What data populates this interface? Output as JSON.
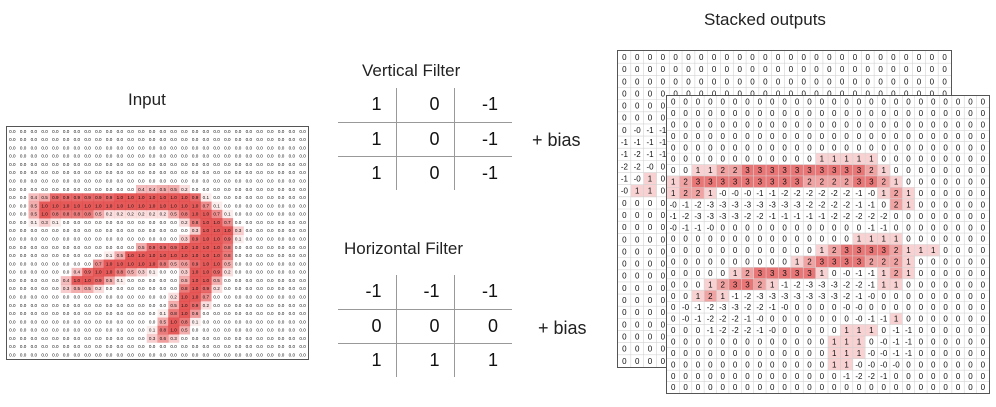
{
  "input": {
    "title": "Input",
    "rows": [
      "0.0 0.0 0.0 0.0 0.0 0.0 0.0 0.0 0.0 0.0 0.0 0.0 0.0 0.0 0.0 0.0 0.0 0.0 0.0 0.0 0.0 0.0 0.0 0.0 0.0 0.0 0.0 0.0",
      "0.0 0.0 0.0 0.0 0.0 0.0 0.0 0.0 0.0 0.0 0.0 0.0 0.0 0.0 0.0 0.0 0.0 0.0 0.0 0.0 0.0 0.0 0.0 0.0 0.0 0.0 0.0 0.0",
      "0.0 0.0 0.0 0.0 0.0 0.0 0.0 0.0 0.0 0.0 0.0 0.0 0.0 0.0 0.0 0.0 0.0 0.0 0.0 0.0 0.0 0.0 0.0 0.0 0.0 0.0 0.0 0.0",
      "0.0 0.0 0.0 0.0 0.0 0.0 0.0 0.0 0.0 0.0 0.0 0.0 0.0 0.0 0.0 0.0 0.0 0.0 0.0 0.0 0.0 0.0 0.0 0.0 0.0 0.0 0.0 0.0",
      "0.0 0.0 0.0 0.0 0.0 0.0 0.0 0.0 0.0 0.0 0.0 0.0 0.0 0.0 0.0 0.0 0.0 0.0 0.0 0.0 0.0 0.0 0.0 0.0 0.0 0.0 0.0 0.0",
      "0.0 0.0 0.0 0.0 0.0 0.0 0.0 0.0 0.0 0.0 0.0 0.0 0.0 0.0 0.0 0.0 0.0 0.0 0.0 0.0 0.0 0.0 0.0 0.0 0.0 0.0 0.0 0.0",
      "0.0 0.0 0.0 0.0 0.0 0.0 0.0 0.0 0.0 0.0 0.0 0.0 0.0 0.0 0.0 0.0 0.0 0.0 0.0 0.0 0.0 0.0 0.0 0.0 0.0 0.0 0.0 0.0",
      "0.0 0.0 0.0 0.0 0.0 0.0 0.0 0.0 0.0 0.0 0.0 0.0 0.4 0.4 0.5 0.5 0.2 0.0 0.0 0.0 0.0 0.0 0.0 0.0 0.0 0.0 0.0 0.0",
      "0.0 0.0 0.4 0.5 0.9 0.9 0.9 0.9 0.9 0.9 1.0 1.0 1.0 1.0 1.0 1.0 1.0 0.9 0.1 0.0 0.0 0.0 0.0 0.0 0.0 0.0 0.0 0.0",
      "0.0 0.0 0.5 1.0 1.0 1.0 1.0 1.0 1.0 1.0 1.0 1.0 1.0 1.0 1.0 1.0 1.0 1.0 0.7 0.1 0.0 0.0 0.0 0.0 0.0 0.0 0.0 0.0",
      "0.0 0.0 0.5 1.0 0.8 0.8 0.8 0.8 0.5 0.2 0.2 0.2 0.2 0.2 0.2 0.5 0.8 1.0 1.0 0.7 0.1 0.0 0.0 0.0 0.0 0.0 0.0 0.0",
      "0.0 0.0 0.1 0.3 0.1 0.0 0.0 0.0 0.0 0.0 0.0 0.0 0.0 0.0 0.0 0.0 0.2 0.8 1.0 1.0 0.7 0.0 0.0 0.0 0.0 0.0 0.0 0.0",
      "0.0 0.0 0.0 0.0 0.0 0.0 0.0 0.0 0.0 0.0 0.0 0.0 0.0 0.0 0.0 0.0 0.0 0.3 1.0 1.0 1.0 0.3 0.0 0.0 0.0 0.0 0.0 0.0",
      "0.0 0.0 0.0 0.0 0.0 0.0 0.0 0.0 0.0 0.0 0.0 0.0 0.0 0.0 0.0 0.0 0.3 0.9 1.0 1.0 0.9 0.1 0.0 0.0 0.0 0.0 0.0 0.0",
      "0.0 0.0 0.0 0.0 0.0 0.0 0.0 0.0 0.0 0.0 0.0 0.0 0.5 0.9 0.9 0.9 1.0 1.0 1.0 1.0 0.8 0.0 0.0 0.0 0.0 0.0 0.0 0.0",
      "0.0 0.0 0.0 0.0 0.0 0.0 0.0 0.0 0.0 0.1 0.5 1.0 1.0 1.0 1.0 1.0 1.0 1.0 1.0 1.0 0.8 0.0 0.0 0.0 0.0 0.0 0.0 0.0",
      "0.0 0.0 0.0 0.0 0.0 0.0 0.0 0.0 0.7 1.0 1.0 1.0 1.0 1.0 0.8 0.5 0.6 0.9 1.0 1.0 0.5 0.0 0.0 0.0 0.0 0.0 0.0 0.0",
      "0.0 0.0 0.0 0.0 0.0 0.0 0.4 0.9 1.0 1.0 0.8 0.5 0.3 0.1 0.0 0.0 0.3 1.0 1.0 0.9 0.2 0.0 0.0 0.0 0.0 0.0 0.0 0.0",
      "0.0 0.0 0.0 0.0 0.0 0.4 1.0 1.0 0.9 0.5 0.1 0.0 0.0 0.0 0.0 0.0 0.5 1.0 1.0 0.5 0.0 0.0 0.0 0.0 0.0 0.0 0.0 0.0",
      "0.0 0.0 0.0 0.0 0.0 0.3 0.5 0.5 0.2 0.0 0.0 0.0 0.0 0.0 0.0 0.0 0.8 1.0 0.9 0.2 0.0 0.0 0.0 0.0 0.0 0.0 0.0 0.0",
      "0.0 0.0 0.0 0.0 0.0 0.0 0.0 0.0 0.0 0.0 0.0 0.0 0.0 0.0 0.0 0.2 1.0 1.0 0.7 0.0 0.0 0.0 0.0 0.0 0.0 0.0 0.0 0.0",
      "0.0 0.0 0.0 0.0 0.0 0.0 0.0 0.0 0.0 0.0 0.0 0.0 0.0 0.0 0.0 0.5 1.0 0.9 0.2 0.0 0.0 0.0 0.0 0.0 0.0 0.0 0.0 0.0",
      "0.0 0.0 0.0 0.0 0.0 0.0 0.0 0.0 0.0 0.0 0.0 0.0 0.0 0.0 0.1 0.8 1.0 0.6 0.0 0.0 0.0 0.0 0.0 0.0 0.0 0.0 0.0 0.0",
      "0.0 0.0 0.0 0.0 0.0 0.0 0.0 0.0 0.0 0.0 0.0 0.0 0.0 0.0 0.5 1.0 0.8 0.1 0.0 0.0 0.0 0.0 0.0 0.0 0.0 0.0 0.0 0.0",
      "0.0 0.0 0.0 0.0 0.0 0.0 0.0 0.0 0.0 0.0 0.0 0.0 0.0 0.1 0.8 1.0 0.5 0.0 0.0 0.0 0.0 0.0 0.0 0.0 0.0 0.0 0.0 0.0",
      "0.0 0.0 0.0 0.0 0.0 0.0 0.0 0.0 0.0 0.0 0.0 0.0 0.0 0.3 0.6 0.3 0.0 0.0 0.0 0.0 0.0 0.0 0.0 0.0 0.0 0.0 0.0 0.0",
      "0.0 0.0 0.0 0.0 0.0 0.0 0.0 0.0 0.0 0.0 0.0 0.0 0.0 0.0 0.0 0.0 0.0 0.0 0.0 0.0 0.0 0.0 0.0 0.0 0.0 0.0 0.0 0.0",
      "0.0 0.0 0.0 0.0 0.0 0.0 0.0 0.0 0.0 0.0 0.0 0.0 0.0 0.0 0.0 0.0 0.0 0.0 0.0 0.0 0.0 0.0 0.0 0.0 0.0 0.0 0.0 0.0"
    ]
  },
  "vertical_filter": {
    "title": "Vertical Filter",
    "rows": [
      [
        "1",
        "0",
        "-1"
      ],
      [
        "1",
        "0",
        "-1"
      ],
      [
        "1",
        "0",
        "-1"
      ]
    ],
    "bias": "+ bias"
  },
  "horizontal_filter": {
    "title": "Horizontal Filter",
    "rows": [
      [
        "-1",
        "-1",
        "-1"
      ],
      [
        "0",
        "0",
        "0"
      ],
      [
        "1",
        "1",
        "1"
      ]
    ],
    "bias": "+ bias"
  },
  "outputs": {
    "title": "Stacked outputs",
    "back_rows": [
      "0 0 0 0 0 0 0 0 0 0 0 0 0 0 0 0 0 0 0 0 0 0 0 0 0 0",
      "0 0 0 0 0 0 0 0 0 0 0 0 0 0 0 0 0 0 0 0 0 0 0 0 0 0",
      "0 0 0 0 0 0 0 0 0 0 0 0 0 0 0 0 0 0 0 0 0 0 0 0 0 0",
      "0 0 0 0 0 0 0 0 0 0 0 0 0 0 0 0 0 0 0 0 0 0 0 0 0 0",
      "0 0 0 0 0 0 0 0 0 0 0 0 0 0 0 0 0 0 0 0 0 0 0 0 0 0",
      "0 0 0 0 0 0 0 0 0 0 0 0 0 0 0 0 0 0 0 0 0 0 0 0 0 0",
      "0 -0 -1 -1 0 0 0 0 0 0 0 0 0 0 0 0 0 0 0 0 0 0 0 0 0 0",
      "-1 -1 -1 -1 0 0 0 0 0 0 0 0 0 0 0 0 0 0 0 0 0 0 0 0 0 0",
      "-1 -2 -1 -1 0 0 0 0 0 0 0 0 0 0 0 0 0 0 0 0 0 0 0 0 0 0",
      "-2 -2 -0 0 0 0 0 0 0 0 0 0 0 0 0 0 0 0 0 0 0 0 0 0 0 0",
      "-1 -0 1 0 0 0 0 0 0 0 0 0 0 0 0 0 0 0 0 0 0 0 0 0 0 0",
      "-0 1 1 0 0 0 0 0 0 0 0 0 0 0 0 0 0 0 0 0 0 0 0 0 0 0",
      "0 0 0 0 0 0 0 0 0 0 0 0 0 0 0 0 0 0 0 0 0 0 0 0 0 0",
      "0 0 0 0 0 0 0 0 0 0 0 0 0 0 0 0 0 0 0 0 0 0 0 0 0 0",
      "0 0 0 0 0 0 0 0 0 0 0 0 0 0 0 0 0 0 0 0 0 0 0 0 0 0",
      "0 0 0 0 0 0 0 0 0 0 0 0 0 0 0 0 0 0 0 0 0 0 0 0 0 0",
      "0 0 0 0 0 0 0 0 0 0 0 0 0 0 0 0 0 0 0 0 0 0 0 0 0 0",
      "0 0 0 0 0 0 0 0 0 0 0 0 0 0 0 0 0 0 0 0 0 0 0 0 0 0",
      "0 0 0 0 0 0 0 0 0 0 0 0 0 0 0 0 0 0 0 0 0 0 0 0 0 0",
      "0 0 0 0 0 0 0 0 0 0 0 0 0 0 0 0 0 0 0 0 0 0 0 0 0 0",
      "0 0 0 0 0 0 0 0 0 0 0 0 0 0 0 0 0 0 0 0 0 0 0 0 0 0",
      "0 0 0 0 0 0 0 0 0 0 0 0 0 0 0 0 0 0 0 0 0 0 0 0 0 0",
      "0 0 0 0 0 0 0 0 0 0 0 0 0 0 0 0 0 0 0 0 0 0 0 0 0 0",
      "0 0 0 0 0 0 0 0 0 0 0 0 0 0 0 0 0 0 0 0 0 0 0 0 0 0",
      "0 0 0 0 0 0 0 0 0 0 0 0 0 0 0 0 0 0 0 0 0 0 0 0 0 0",
      "0 0 0 0 0 0 0 0 0 0 0 0 0 0 0 0 0 0 0 0 0 0 0 0 0 0"
    ],
    "front_rows": [
      "0 0 0 0 0 0 0 0 0 0 0 0 0 0 0 0 0 0 0 0 0 0 0 0 0 0",
      "0 0 0 0 0 0 0 0 0 0 0 0 0 0 0 0 0 0 0 0 0 0 0 0 0 0",
      "0 0 0 0 0 0 0 0 0 0 0 0 0 0 0 0 0 0 0 0 0 0 0 0 0 0",
      "0 0 0 0 0 0 0 0 0 0 0 0 0 0 0 0 0 0 0 0 0 0 0 0 0 0",
      "0 0 0 0 0 0 0 0 0 0 0 0 0 0 0 0 0 0 0 0 0 0 0 0 0 0",
      "0 0 0 0 0 0 0 0 0 0 0 0 1 1 1 1 1 0 0 0 0 0 0 0 0 0",
      "0 0 1 1 2 2 3 3 3 3 3 3 3 3 3 3 2 1 0 0 0 0 0 0 0 0",
      "1 2 3 3 3 3 3 3 3 3 3 2 2 2 2 3 3 2 1 0 0 0 0 0 0 0",
      "1 2 2 1 -0 -0 -0 -1 -1 -2 -2 -2 -2 -2 -2 -1 -0 1 2 1 0 0 0 0 0 0",
      "-0 -1 -2 -3 -3 -3 -3 -3 -3 -3 -3 -2 -2 -2 -2 -1 -1 0 2 1 0 0 0 0 0 0",
      "-1 -2 -3 -3 -3 -3 -2 -2 -1 -1 -1 -1 -1 -2 -2 -2 -2 -2 0 0 0 0 0 0 0 0",
      "-0 -1 -1 -0 0 0 0 0 0 0 0 0 0 0 0 0 -1 -1 0 0 0 0 0 0 0 0",
      "0 0 0 0 0 0 0 0 0 0 0 0 0 0 0 1 1 1 1 0 0 0 0 0 0 0",
      "0 0 0 0 0 0 0 0 0 0 0 0 1 2 3 3 3 3 2 1 1 1 0 0 0 0",
      "0 0 0 0 0 0 0 0 0 0 1 2 3 3 3 3 2 2 2 1 0 0 0 0 0 0",
      "0 0 0 0 0 1 2 3 3 3 3 3 1 0 -0 -1 -1 1 2 1 0 0 0 0 0 0",
      "0 0 0 1 2 3 3 2 1 -1 -2 -3 -3 -3 -2 -2 -1 1 1 0 0 0 0 0 0 0",
      "0 0 1 2 1 -1 -2 -3 -3 -3 -3 -3 -3 -3 -2 -1 -0 0 0 0 0 0 0 0 0 0",
      "0 -0 -1 -2 -3 -3 -2 -2 -1 -0 0 0 0 0 -0 -0 0 0 0 0 0 0 0 0 0 0",
      "0 -0 -1 -2 -2 -2 -1 -0 0 0 0 0 0 0 0 -0 -1 -1 1 0 0 0 0 0 0 0",
      "0 0 0 -1 -2 -2 -2 -1 -0 0 0 0 0 0 1 1 1 0 -1 -1 0 0 0 0 0 0",
      "0 0 0 0 0 0 0 0 0 0 0 0 0 1 1 1 0 -0 -1 -1 0 0 0 0 0 0",
      "0 0 0 0 0 0 0 0 0 0 0 0 0 1 1 1 -0 -0 -1 -1 0 0 0 0 0 0",
      "0 0 0 0 0 0 0 0 0 0 0 0 0 1 1 -0 -0 -0 -0 0 0 0 0 0 0 0",
      "0 0 0 0 0 0 0 0 0 0 0 0 0 0 -1 -2 -2 -1 0 0 0 0 0 0 0 0",
      "0 0 0 0 0 0 0 0 0 0 0 0 0 0 0 0 0 0 0 0 0 0 0 0 0 0"
    ]
  },
  "colors": {
    "highlight": "#e03c3c",
    "grid_line": "#d4d4d4",
    "border": "#555555"
  }
}
